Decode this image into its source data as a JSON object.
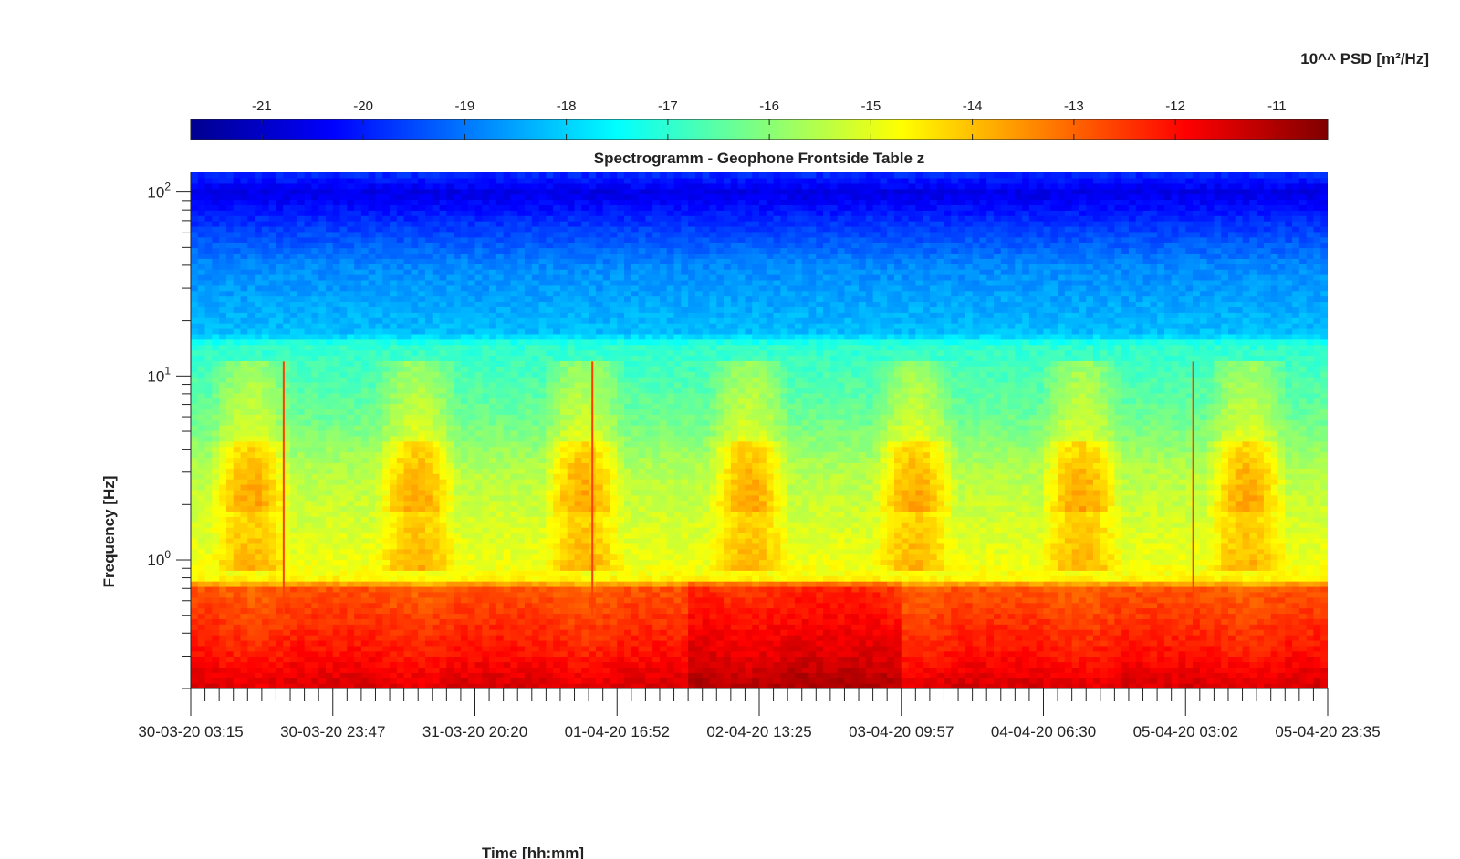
{
  "chart_data": {
    "type": "heatmap",
    "title": "Spectrogramm - Geophone Frontside Table z",
    "xlabel": "Time [hh:mm]",
    "ylabel": "Frequency [Hz]",
    "x_tick_labels": [
      "30-03-20 03:15",
      "30-03-20 23:47",
      "31-03-20 20:20",
      "01-04-20 16:52",
      "02-04-20 13:25",
      "03-04-20 09:57",
      "04-04-20 06:30",
      "05-04-20 03:02",
      "05-04-20 23:35"
    ],
    "y_scale": "log",
    "y_range_hz": [
      0.2,
      128
    ],
    "y_ticks": [
      {
        "value": 1,
        "base": "10",
        "exp": "0"
      },
      {
        "value": 10,
        "base": "10",
        "exp": "1"
      },
      {
        "value": 100,
        "base": "10",
        "exp": "2"
      }
    ],
    "colorbar": {
      "label": "10^^ PSD [m²/Hz]",
      "range": [
        -21.7,
        -10.5
      ],
      "ticks": [
        "-21",
        "-20",
        "-19",
        "-18",
        "-17",
        "-16",
        "-15",
        "-14",
        "-13",
        "-12",
        "-11"
      ],
      "colormap": "jet",
      "colormap_stops": [
        "#00008f",
        "#0000ff",
        "#00ffff",
        "#ffff00",
        "#ff0000",
        "#800000"
      ]
    },
    "days_covered": 6.85,
    "psd_profile_log10": [
      {
        "hz": 0.2,
        "psd": -11.4
      },
      {
        "hz": 0.3,
        "psd": -12.0
      },
      {
        "hz": 0.7,
        "psd": -12.8
      },
      {
        "hz": 0.8,
        "psd": -14.7
      },
      {
        "hz": 1.0,
        "psd": -14.9
      },
      {
        "hz": 3.0,
        "psd": -15.5
      },
      {
        "hz": 6.0,
        "psd": -16.3
      },
      {
        "hz": 15.0,
        "psd": -17.0
      },
      {
        "hz": 17.0,
        "psd": -18.2
      },
      {
        "hz": 40.0,
        "psd": -18.8
      },
      {
        "hz": 70.0,
        "psd": -19.8
      },
      {
        "hz": 100.0,
        "psd": -20.6
      },
      {
        "hz": 128.0,
        "psd": -19.8
      }
    ],
    "grid": false,
    "colorbar_position": "top"
  }
}
